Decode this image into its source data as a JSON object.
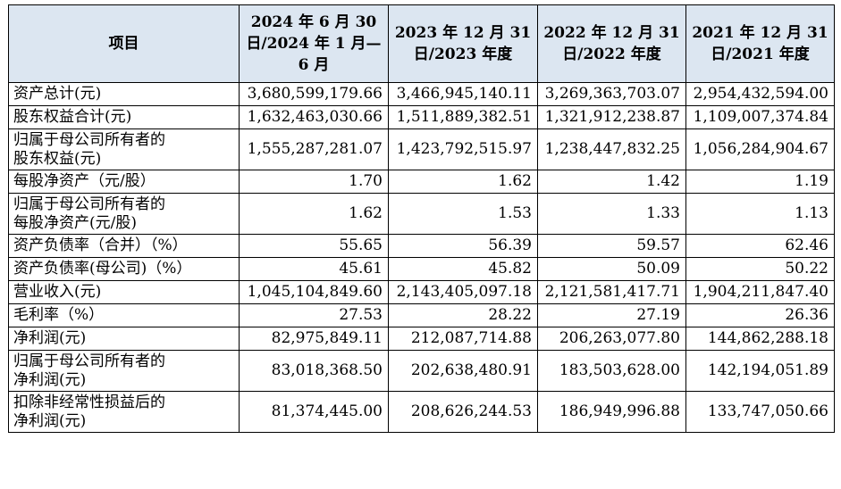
{
  "header": {
    "item": "项目",
    "p2024h1": "2024 年 6 月 30 日/2024 年 1 月—6 月",
    "p2023": "2023 年 12 月 31 日/2023 年度",
    "p2022": "2022 年 12 月 31 日/2022 年度",
    "p2021": "2021 年 12 月 31 日/2021 年度"
  },
  "rows": [
    {
      "label": "资产总计(元)",
      "v": [
        "3,680,599,179.66",
        "3,466,945,140.11",
        "3,269,363,703.07",
        "2,954,432,594.00"
      ]
    },
    {
      "label": "股东权益合计(元)",
      "v": [
        "1,632,463,030.66",
        "1,511,889,382.51",
        "1,321,912,238.87",
        "1,109,007,374.84"
      ]
    },
    {
      "label": "归属于母公司所有者的\n股东权益(元)",
      "v": [
        "1,555,287,281.07",
        "1,423,792,515.97",
        "1,238,447,832.25",
        "1,056,284,904.67"
      ]
    },
    {
      "label": "每股净资产（元/股）",
      "v": [
        "1.70",
        "1.62",
        "1.42",
        "1.19"
      ]
    },
    {
      "label": "归属于母公司所有者的\n每股净资产(元/股)",
      "v": [
        "1.62",
        "1.53",
        "1.33",
        "1.13"
      ]
    },
    {
      "label": "资产负债率（合并）（%）",
      "v": [
        "55.65",
        "56.39",
        "59.57",
        "62.46"
      ]
    },
    {
      "label": "资产负债率(母公司)（%）",
      "v": [
        "45.61",
        "45.82",
        "50.09",
        "50.22"
      ]
    },
    {
      "label": "营业收入(元)",
      "v": [
        "1,045,104,849.60",
        "2,143,405,097.18",
        "2,121,581,417.71",
        "1,904,211,847.40"
      ]
    },
    {
      "label": "毛利率（%）",
      "v": [
        "27.53",
        "28.22",
        "27.19",
        "26.36"
      ]
    },
    {
      "label": "净利润(元)",
      "v": [
        "82,975,849.11",
        "212,087,714.88",
        "206,263,077.80",
        "144,862,288.18"
      ]
    },
    {
      "label": "归属于母公司所有者的\n净利润(元)",
      "v": [
        "83,018,368.50",
        "202,638,480.91",
        "183,503,628.00",
        "142,194,051.89"
      ]
    },
    {
      "label": "扣除非经常性损益后的\n净利润(元)",
      "v": [
        "81,374,445.00",
        "208,626,244.53",
        "186,949,996.88",
        "133,747,050.66"
      ]
    }
  ]
}
